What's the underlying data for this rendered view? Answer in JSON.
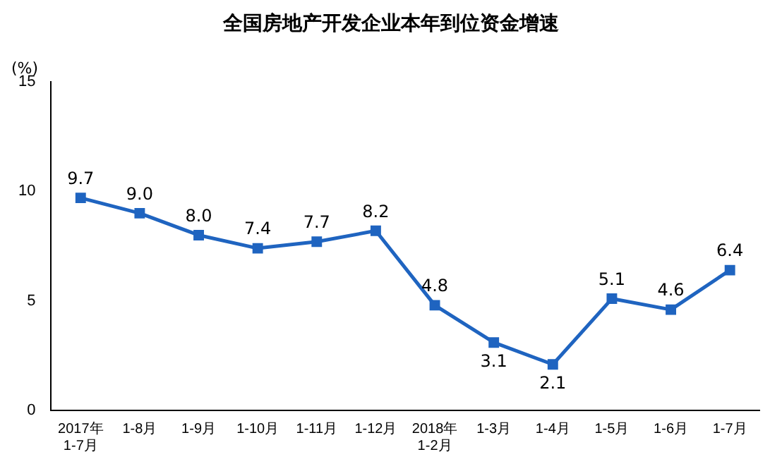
{
  "chart_data": {
    "type": "line",
    "title": "全国房地产开发企业本年到位资金增速",
    "ylabel": "(%)",
    "categories": [
      "2017年\n1-7月",
      "1-8月",
      "1-9月",
      "1-10月",
      "1-11月",
      "1-12月",
      "2018年\n1-2月",
      "1-3月",
      "1-4月",
      "1-5月",
      "1-6月",
      "1-7月"
    ],
    "series": [
      {
        "color": "#1f64c0",
        "values": [
          9.7,
          9.0,
          8.0,
          7.4,
          7.7,
          8.2,
          4.8,
          3.1,
          2.1,
          5.1,
          4.6,
          6.4
        ],
        "value_labels": [
          "9.7",
          "9.0",
          "8.0",
          "7.4",
          "7.7",
          "8.2",
          "4.8",
          "3.1",
          "2.1",
          "5.1",
          "4.6",
          "6.4"
        ]
      }
    ],
    "ylim": [
      0,
      15
    ],
    "yticks": [
      0,
      5,
      10,
      15
    ],
    "grid": false,
    "legend": false,
    "marker": "square",
    "line_style": "solid"
  }
}
